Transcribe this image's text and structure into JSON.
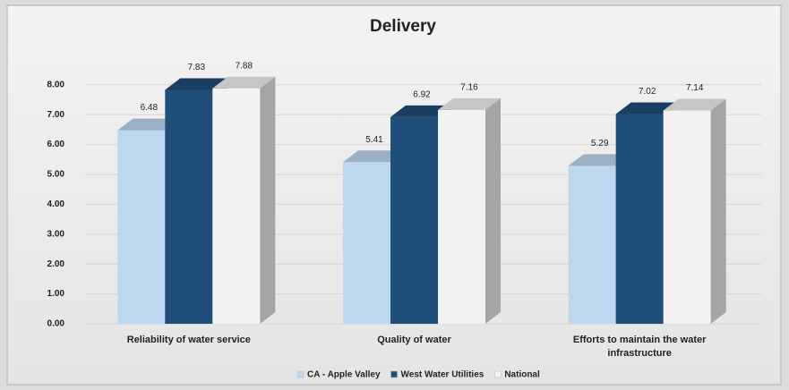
{
  "chart_data": {
    "type": "bar3d",
    "title": "Delivery",
    "categories": [
      "Reliability of water service",
      "Quality of water",
      "Efforts to maintain the water infrastructure"
    ],
    "series": [
      {
        "name": "CA - Apple Valley",
        "color": "#bdd7ee",
        "values": [
          6.48,
          5.41,
          5.29
        ]
      },
      {
        "name": "West Water Utilities",
        "color": "#1f4e79",
        "values": [
          7.83,
          6.92,
          7.02
        ]
      },
      {
        "name": "National",
        "color": "#f2f2f2",
        "values": [
          7.88,
          7.16,
          7.14
        ]
      }
    ],
    "ylim": [
      0,
      9
    ],
    "yticks": [
      {
        "value": 0,
        "label": "0.00"
      },
      {
        "value": 1,
        "label": "1.00"
      },
      {
        "value": 2,
        "label": "2.00"
      },
      {
        "value": 3,
        "label": "3.00"
      },
      {
        "value": 4,
        "label": "4.00"
      },
      {
        "value": 5,
        "label": "5.00"
      },
      {
        "value": 6,
        "label": "6.00"
      },
      {
        "value": 7,
        "label": "7.00"
      },
      {
        "value": 8,
        "label": "8.00"
      }
    ],
    "grid": true,
    "legend": "bottom"
  }
}
